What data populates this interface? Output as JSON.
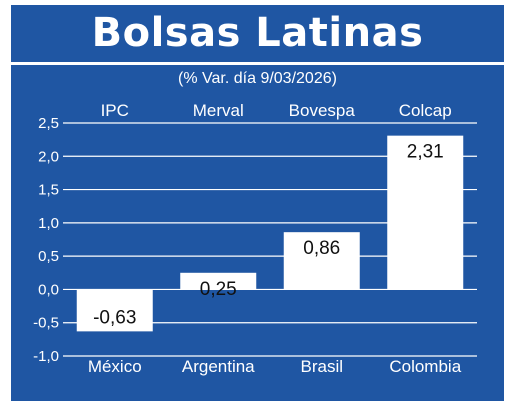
{
  "title": "Bolsas Latinas",
  "subtitle": "(% Var. día 9/03/2026)",
  "colors": {
    "background": "#1f56a3",
    "bars": "#ffffff",
    "text": "#ffffff",
    "value_text": "#111111"
  },
  "chart_data": {
    "type": "bar",
    "title": "Bolsas Latinas",
    "subtitle": "(% Var. día 9/03/2026)",
    "index_names": [
      "IPC",
      "Merval",
      "Bovespa",
      "Colcap"
    ],
    "categories": [
      "México",
      "Argentina",
      "Brasil",
      "Colombia"
    ],
    "values": [
      -0.63,
      0.25,
      0.86,
      2.31
    ],
    "value_labels": [
      "-0,63",
      "0,25",
      "0,86",
      "2,31"
    ],
    "ylim": [
      -1.0,
      2.5
    ],
    "yticks": [
      2.5,
      2.0,
      1.5,
      1.0,
      0.5,
      0.0,
      -0.5,
      -1.0
    ],
    "ytick_labels": [
      "2,5",
      "2,0",
      "1,5",
      "1,0",
      "0,5",
      "0,0",
      "-0,5",
      "-1,0"
    ],
    "grid": true,
    "xlabel": "",
    "ylabel": ""
  }
}
